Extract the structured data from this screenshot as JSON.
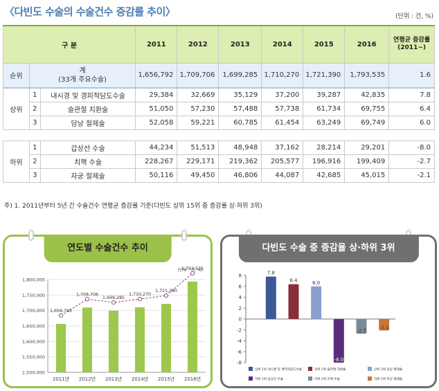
{
  "title": "〈다빈도 수술의 수술건수 증감률 추이〉",
  "unit": "(단위 : 건, %)",
  "table": {
    "header_category": "구 분",
    "years": [
      "2011",
      "2012",
      "2013",
      "2014",
      "2015",
      "2016"
    ],
    "header_growth": "연평균 증감률 (2011~)",
    "total": {
      "rank_label": "순위",
      "label": "계",
      "sublabel": "(33개 주요수술)",
      "values": [
        "1,656,792",
        "1,709,706",
        "1,699,285",
        "1,710,270",
        "1,721,390",
        "1,793,535"
      ],
      "growth": "1.6"
    },
    "upper_label": "상위",
    "upper": [
      {
        "rank": "1",
        "name": "내시경 및 경피적담도수술",
        "values": [
          "29,384",
          "32,669",
          "35,129",
          "37,200",
          "39,287",
          "42,835"
        ],
        "growth": "7.8"
      },
      {
        "rank": "2",
        "name": "슬관절 치환술",
        "values": [
          "51,050",
          "57,230",
          "57,488",
          "57,738",
          "61,734",
          "69,755"
        ],
        "growth": "6.4"
      },
      {
        "rank": "3",
        "name": "담낭 절제술",
        "values": [
          "52,058",
          "59,221",
          "60,785",
          "61,454",
          "63,249",
          "69,749"
        ],
        "growth": "6.0"
      }
    ],
    "lower_label": "하위",
    "lower": [
      {
        "rank": "1",
        "name": "갑상선 수술",
        "values": [
          "44,234",
          "51,513",
          "48,948",
          "37,162",
          "28,214",
          "29,201"
        ],
        "growth": "-8.0"
      },
      {
        "rank": "2",
        "name": "치핵 수술",
        "values": [
          "228,267",
          "229,171",
          "219,362",
          "205,577",
          "196,916",
          "199,409"
        ],
        "growth": "-2.7"
      },
      {
        "rank": "3",
        "name": "자궁 절제술",
        "values": [
          "50,116",
          "49,450",
          "46,806",
          "44,087",
          "42,685",
          "45,015"
        ],
        "growth": "-2.1"
      }
    ]
  },
  "footnote": "주) 1. 2011년부터 5년 간 수술건수 연평균 증감률 기준(다빈도 상위 15위 중 증감률 상·하위 3위)",
  "chart_data": [
    {
      "type": "bar",
      "title": "연도별 수술건수 추이",
      "unit_label": "(단위 : 건, %)",
      "categories": [
        "2011년",
        "2012년",
        "2013년",
        "2014년",
        "2015년",
        "2016년"
      ],
      "values": [
        1656792,
        1709706,
        1699285,
        1710270,
        1721390,
        1793535
      ],
      "data_labels": [
        "1,656,792",
        "1,709,706",
        "1,699,285",
        "1,710,270",
        "1,721,390",
        "1,793,535"
      ],
      "overlay_line": true,
      "ylim": [
        1500000,
        1800000
      ],
      "yticks": [
        1500000,
        1550000,
        1600000,
        1650000,
        1700000,
        1750000,
        1800000
      ],
      "ytick_labels": [
        "1,500,000",
        "1,550,000",
        "1,600,000",
        "1,650,000",
        "1,700,000",
        "1,750,000",
        "1,800,000"
      ],
      "colors": {
        "bar": "#9cc84c",
        "line": "#8c4a8a",
        "marker_fill": "#ffffff"
      }
    },
    {
      "type": "bar",
      "title": "다빈도 수술 중 증감율 상·하위 3위",
      "categories": [
        "상위 1위 내시경 및 경피적담도수술",
        "상위 2위 슬관절 치환술",
        "상위 3위 담낭 절제술",
        "하위 1위 갑상선 수술",
        "하위 2위 치핵 수술",
        "하위 3위 자궁 절제술"
      ],
      "values": [
        7.8,
        6.4,
        6.0,
        -8.0,
        -2.7,
        -2.1
      ],
      "data_labels": [
        "7.8",
        "6.4",
        "6.0",
        "-8.0",
        "-2.7",
        "-2.1"
      ],
      "ylim": [
        -8,
        8
      ],
      "yticks": [
        -8,
        -6,
        -4,
        -2,
        0,
        2,
        4,
        6,
        8
      ],
      "legend_labels": [
        "상위 1위 내시경 및 경피적담도수술",
        "상위 2위 슬관절 치환술",
        "상위 3위 담낭 절제술",
        "하위 1위 갑상선 수술",
        "하위 2위 치핵 수술",
        "하위 3위 자궁 절제술"
      ],
      "legend_position": "bottom",
      "colors": [
        "#3d5a98",
        "#8a2d3a",
        "#8a9ed0",
        "#5c2d7a",
        "#7a8a96",
        "#c8763a"
      ]
    }
  ]
}
